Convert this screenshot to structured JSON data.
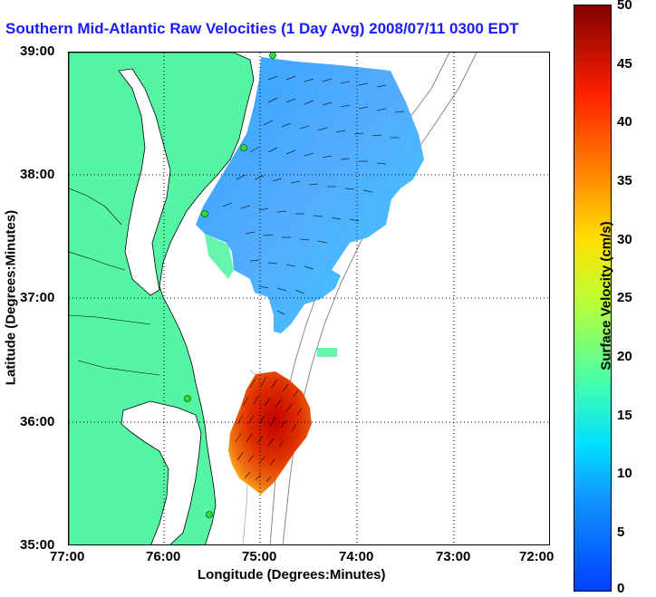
{
  "title": "Southern Mid-Atlantic Raw Velocities (1 Day Avg) 2008/07/11 0300 EDT",
  "x_axis": {
    "label": "Longitude (Degrees:Minutes)",
    "ticks": [
      "77:00",
      "76:00",
      "75:00",
      "74:00",
      "73:00",
      "72:00"
    ]
  },
  "y_axis": {
    "label": "Latitude (Degrees:Minutes)",
    "ticks": [
      "39:00",
      "38:00",
      "37:00",
      "36:00",
      "35:00"
    ]
  },
  "colorbar": {
    "label": "Surface Velocity (cm/s)",
    "ticks": [
      "50",
      "45",
      "40",
      "35",
      "30",
      "25",
      "20",
      "15",
      "10",
      "5",
      "0"
    ],
    "range": [
      0,
      50
    ],
    "colormap": "jet"
  },
  "colors": {
    "land": "#55f5a5",
    "title": "#1a1aff",
    "station": "#33dd33"
  },
  "map": {
    "lon_range": [
      -77,
      -72
    ],
    "lat_range": [
      35,
      39
    ],
    "grid": "dotted"
  }
}
